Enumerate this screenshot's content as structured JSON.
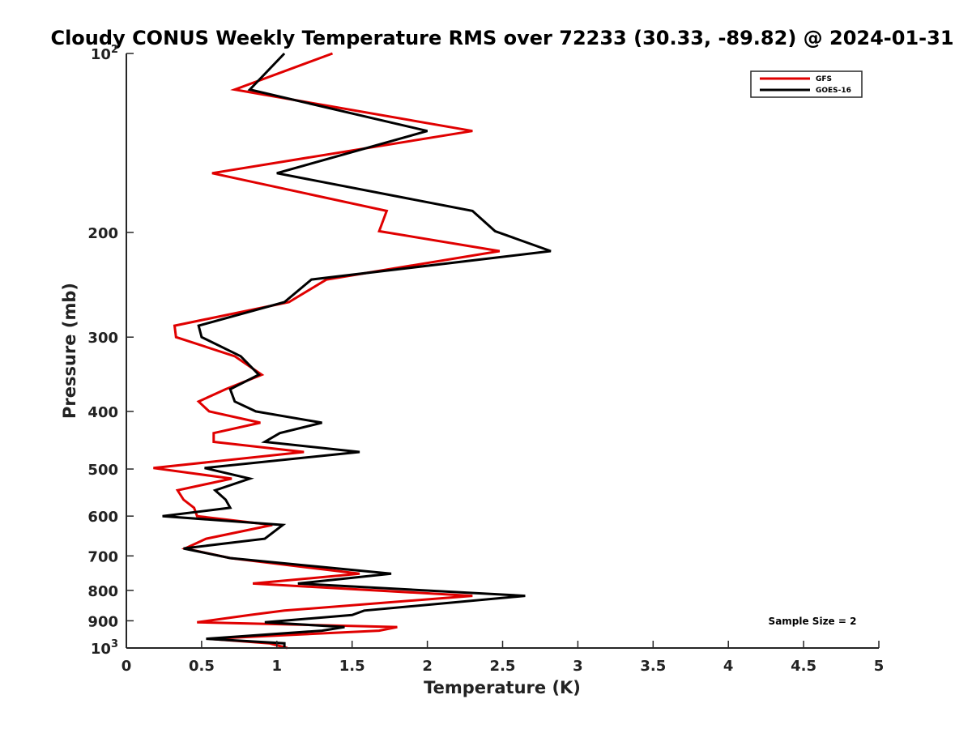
{
  "chart_data": {
    "type": "line",
    "title": "Cloudy CONUS Weekly Temperature RMS over 72233 (30.33, -89.82) @ 2024-01-31",
    "xlabel": "Temperature (K)",
    "ylabel": "Pressure (mb)",
    "xlim": [
      0,
      5
    ],
    "ylim": [
      100,
      1000
    ],
    "y_scale": "log",
    "y_reversed": true,
    "x_ticks": [
      {
        "value": 0,
        "label": "0"
      },
      {
        "value": 0.5,
        "label": "0.5"
      },
      {
        "value": 1,
        "label": "1"
      },
      {
        "value": 1.5,
        "label": "1.5"
      },
      {
        "value": 2,
        "label": "2"
      },
      {
        "value": 2.5,
        "label": "2.5"
      },
      {
        "value": 3,
        "label": "3"
      },
      {
        "value": 3.5,
        "label": "3.5"
      },
      {
        "value": 4,
        "label": "4"
      },
      {
        "value": 4.5,
        "label": "4.5"
      },
      {
        "value": 5,
        "label": "5"
      }
    ],
    "y_ticks": [
      {
        "value": 100,
        "base": "10",
        "exp": "2"
      },
      {
        "value": 200,
        "label": "200"
      },
      {
        "value": 300,
        "label": "300"
      },
      {
        "value": 400,
        "label": "400"
      },
      {
        "value": 500,
        "label": "500"
      },
      {
        "value": 600,
        "label": "600"
      },
      {
        "value": 700,
        "label": "700"
      },
      {
        "value": 800,
        "label": "800"
      },
      {
        "value": 900,
        "label": "900"
      },
      {
        "value": 1000,
        "base": "10",
        "exp": "3"
      }
    ],
    "grid": false,
    "legend_position": "top-right",
    "series": [
      {
        "name": "GFS",
        "color": "#e00000",
        "points": [
          [
            1.37,
            100
          ],
          [
            0.72,
            115
          ],
          [
            2.3,
            135
          ],
          [
            0.57,
            159
          ],
          [
            1.73,
            184
          ],
          [
            1.68,
            199
          ],
          [
            2.48,
            215
          ],
          [
            1.33,
            240
          ],
          [
            1.08,
            262
          ],
          [
            0.32,
            287
          ],
          [
            0.33,
            300
          ],
          [
            0.72,
            323
          ],
          [
            0.9,
            347
          ],
          [
            0.66,
            367
          ],
          [
            0.48,
            385
          ],
          [
            0.55,
            400
          ],
          [
            0.89,
            418
          ],
          [
            0.58,
            435
          ],
          [
            0.58,
            450
          ],
          [
            1.18,
            468
          ],
          [
            0.18,
            498
          ],
          [
            0.7,
            519
          ],
          [
            0.34,
            543
          ],
          [
            0.38,
            563
          ],
          [
            0.45,
            581
          ],
          [
            0.47,
            600
          ],
          [
            0.97,
            621
          ],
          [
            0.53,
            655
          ],
          [
            0.39,
            680
          ],
          [
            0.69,
            706
          ],
          [
            1.55,
            750
          ],
          [
            0.84,
            779
          ],
          [
            2.3,
            817
          ],
          [
            1.05,
            865
          ],
          [
            0.82,
            880
          ],
          [
            0.47,
            905
          ],
          [
            1.8,
            922
          ],
          [
            1.68,
            935
          ],
          [
            0.55,
            965
          ],
          [
            0.95,
            982
          ],
          [
            1.07,
            1000
          ]
        ]
      },
      {
        "name": "GOES-16",
        "color": "#000000",
        "points": [
          [
            1.05,
            100
          ],
          [
            0.82,
            115
          ],
          [
            2.0,
            135
          ],
          [
            1.0,
            159
          ],
          [
            2.3,
            184
          ],
          [
            2.45,
            199
          ],
          [
            2.82,
            215
          ],
          [
            1.23,
            240
          ],
          [
            1.05,
            262
          ],
          [
            0.48,
            287
          ],
          [
            0.5,
            300
          ],
          [
            0.76,
            323
          ],
          [
            0.88,
            347
          ],
          [
            0.69,
            367
          ],
          [
            0.72,
            385
          ],
          [
            0.86,
            400
          ],
          [
            1.3,
            418
          ],
          [
            1.02,
            435
          ],
          [
            0.92,
            450
          ],
          [
            1.55,
            468
          ],
          [
            0.52,
            498
          ],
          [
            0.82,
            519
          ],
          [
            0.59,
            543
          ],
          [
            0.66,
            563
          ],
          [
            0.69,
            581
          ],
          [
            0.24,
            600
          ],
          [
            1.04,
            621
          ],
          [
            0.92,
            655
          ],
          [
            0.38,
            680
          ],
          [
            0.69,
            706
          ],
          [
            1.76,
            750
          ],
          [
            1.14,
            779
          ],
          [
            2.65,
            817
          ],
          [
            1.58,
            865
          ],
          [
            1.5,
            880
          ],
          [
            0.92,
            905
          ],
          [
            1.45,
            922
          ],
          [
            1.3,
            935
          ],
          [
            0.53,
            965
          ],
          [
            1.05,
            982
          ],
          [
            1.05,
            1000
          ]
        ]
      }
    ],
    "annotation": "Sample Size = 2"
  }
}
